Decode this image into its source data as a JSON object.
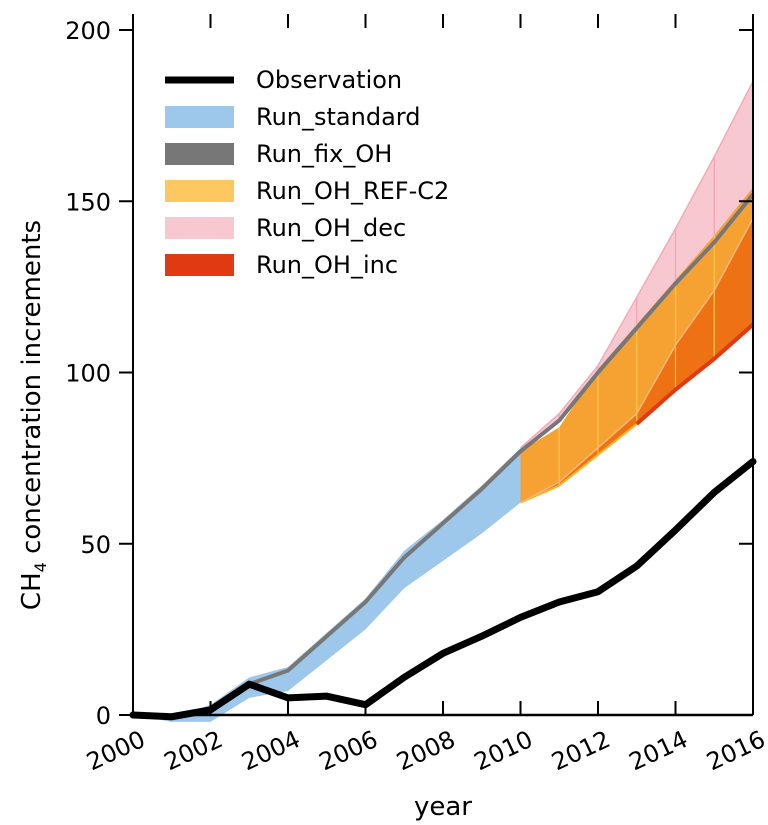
{
  "chart_data": {
    "type": "area",
    "xlabel": "year",
    "ylabel_main": "CH",
    "ylabel_sub": "4",
    "ylabel_rest": " concentration increments",
    "xlim": [
      2000,
      2016
    ],
    "ylim": [
      0,
      200
    ],
    "xticks": [
      "2000",
      "2002",
      "2004",
      "2006",
      "2008",
      "2010",
      "2012",
      "2014",
      "2016"
    ],
    "yticks": [
      "0",
      "50",
      "100",
      "150",
      "200"
    ],
    "legend": [
      {
        "label": "Observation",
        "color": "#000000",
        "kind": "line"
      },
      {
        "label": "Run_standard",
        "color": "#9dc8ec",
        "kind": "band"
      },
      {
        "label": "Run_fix_OH",
        "color": "#777777",
        "kind": "band"
      },
      {
        "label": "Run_OH_REF-C2",
        "color": "#fdc762",
        "kind": "band"
      },
      {
        "label": "Run_OH_dec",
        "color": "#f8c8d0",
        "kind": "band"
      },
      {
        "label": "Run_OH_inc",
        "color": "#e03a12",
        "kind": "band"
      }
    ],
    "series": {
      "run_standard": {
        "x": [
          2000,
          2001,
          2002,
          2003,
          2004,
          2005,
          2006,
          2007,
          2008,
          2009,
          2010
        ],
        "upper": [
          0,
          -1,
          3,
          11,
          14,
          24,
          34,
          48,
          57,
          67,
          78
        ],
        "lower": [
          0,
          -2,
          -2,
          5,
          7,
          16,
          25,
          37,
          45,
          53,
          62
        ]
      },
      "run_fix_oh": {
        "x": [
          2000,
          2001,
          2002,
          2003,
          2004,
          2005,
          2006,
          2007,
          2008,
          2009,
          2010,
          2011,
          2012,
          2013,
          2014,
          2015,
          2016
        ],
        "y": [
          0,
          -1,
          1,
          9,
          13,
          23,
          33,
          46,
          56,
          66,
          77,
          86,
          100,
          113,
          126,
          138,
          152
        ]
      },
      "run_oh_dec": {
        "x": [
          2010,
          2011,
          2012,
          2013,
          2014,
          2015,
          2016
        ],
        "upper": [
          78,
          88,
          102,
          122,
          142,
          163,
          185
        ],
        "lower": [
          77,
          86,
          100,
          113,
          126,
          138,
          152
        ]
      },
      "run_oh_ref_c2": {
        "x": [
          2010,
          2011,
          2012,
          2013,
          2014,
          2015,
          2016
        ],
        "upper": [
          77,
          84,
          101,
          114,
          127,
          140,
          154
        ],
        "lower": [
          62,
          67,
          76,
          85,
          95,
          104,
          114
        ]
      },
      "run_oh_inc": {
        "x": [
          2010,
          2011,
          2012,
          2013,
          2014,
          2015,
          2016
        ],
        "upper": [
          62,
          68,
          78,
          88,
          108,
          124,
          145
        ],
        "lower": [
          62,
          67,
          76,
          85,
          95,
          104,
          114
        ]
      },
      "observation": {
        "x": [
          2000,
          2001,
          2002,
          2003,
          2004,
          2005,
          2006,
          2007,
          2008,
          2009,
          2010,
          2011,
          2012,
          2013,
          2014,
          2015,
          2016
        ],
        "y": [
          0,
          -0.5,
          1.5,
          9,
          5,
          5.5,
          3,
          11,
          18,
          23,
          28.5,
          33,
          36,
          43.5,
          54,
          65,
          74
        ]
      }
    }
  }
}
